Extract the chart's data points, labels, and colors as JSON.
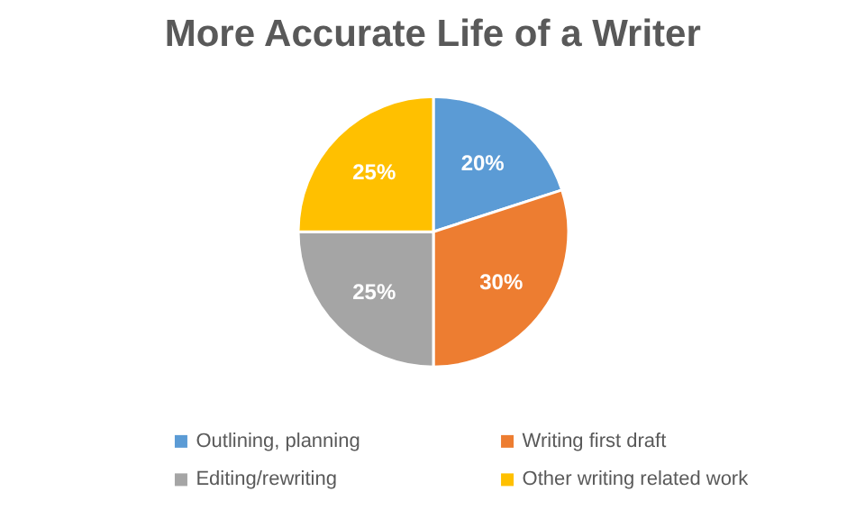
{
  "chart_data": {
    "type": "pie",
    "title": "More Accurate Life of a Writer",
    "categories": [
      "Outlining, planning",
      "Writing first draft",
      "Editing/rewriting",
      "Other writing related work"
    ],
    "values": [
      20,
      30,
      25,
      25
    ],
    "colors": [
      "#5b9bd5",
      "#ed7d31",
      "#a5a5a5",
      "#ffc000"
    ],
    "value_labels": [
      "20%",
      "30%",
      "25%",
      "25%"
    ],
    "legend": "bottom"
  }
}
